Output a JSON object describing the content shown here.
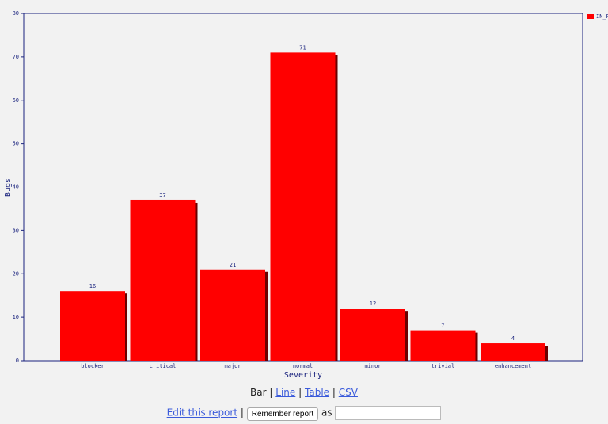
{
  "chart_data": {
    "type": "bar",
    "x_label": "Severity",
    "y_label": "Bugs",
    "categories": [
      "blocker",
      "critical",
      "major",
      "normal",
      "minor",
      "trivial",
      "enhancement"
    ],
    "series": [
      {
        "name": "IN_P",
        "color": "#ff0000",
        "values": [
          16,
          37,
          21,
          71,
          12,
          7,
          4
        ]
      }
    ],
    "ylim": [
      0,
      80
    ],
    "yticks": [
      0,
      10,
      20,
      30,
      40,
      50,
      60,
      70,
      80
    ],
    "legend": "top-right"
  },
  "formats": {
    "current": "Bar",
    "links": [
      "Line",
      "Table",
      "CSV"
    ],
    "separator": "|"
  },
  "footer": {
    "edit_link": "Edit this report",
    "button": "Remember report",
    "as": "as"
  }
}
